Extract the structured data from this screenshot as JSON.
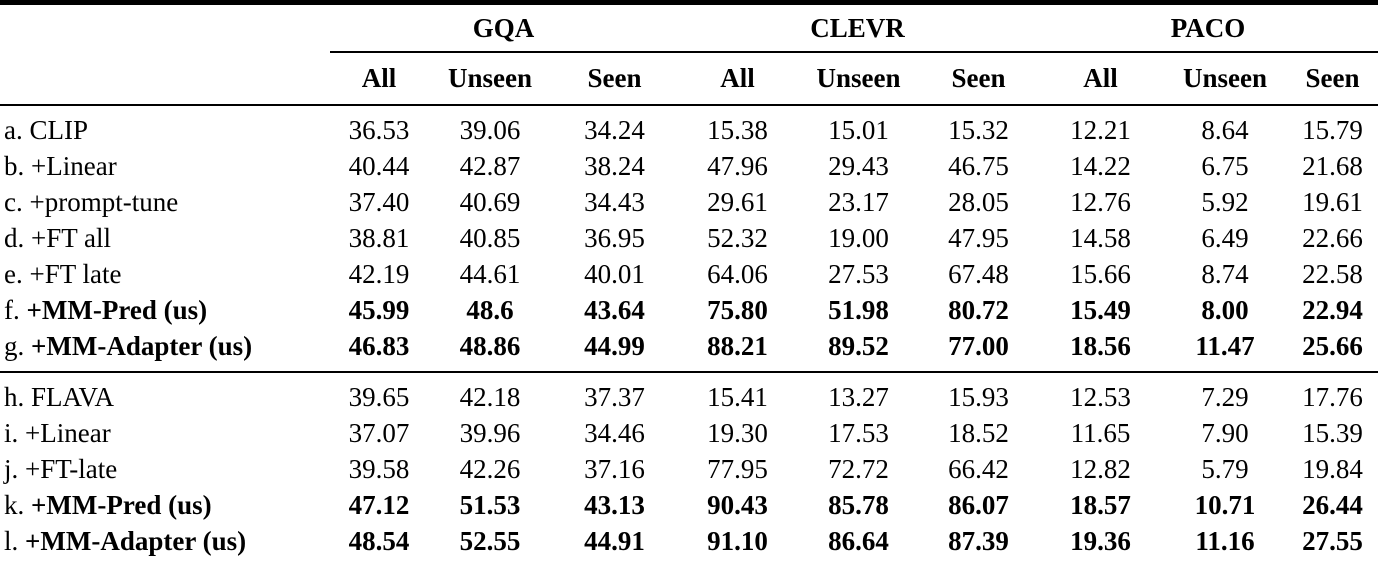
{
  "table": {
    "groups": [
      {
        "label": "GQA"
      },
      {
        "label": "CLEVR"
      },
      {
        "label": "PACO"
      }
    ],
    "subheaders": [
      "All",
      "Unseen",
      "Seen",
      "All",
      "Unseen",
      "Seen",
      "All",
      "Unseen",
      "Seen"
    ],
    "sections": [
      {
        "rows": [
          {
            "prefix": "a.",
            "name": "CLIP",
            "bold": false,
            "values": [
              "36.53",
              "39.06",
              "34.24",
              "15.38",
              "15.01",
              "15.32",
              "12.21",
              "8.64",
              "15.79"
            ]
          },
          {
            "prefix": "b.",
            "name": "+Linear",
            "bold": false,
            "values": [
              "40.44",
              "42.87",
              "38.24",
              "47.96",
              "29.43",
              "46.75",
              "14.22",
              "6.75",
              "21.68"
            ]
          },
          {
            "prefix": "c.",
            "name": "+prompt-tune",
            "bold": false,
            "values": [
              "37.40",
              "40.69",
              "34.43",
              "29.61",
              "23.17",
              "28.05",
              "12.76",
              "5.92",
              "19.61"
            ]
          },
          {
            "prefix": "d.",
            "name": "+FT all",
            "bold": false,
            "values": [
              "38.81",
              "40.85",
              "36.95",
              "52.32",
              "19.00",
              "47.95",
              "14.58",
              "6.49",
              "22.66"
            ]
          },
          {
            "prefix": "e.",
            "name": "+FT late",
            "bold": false,
            "values": [
              "42.19",
              "44.61",
              "40.01",
              "64.06",
              "27.53",
              "67.48",
              "15.66",
              "8.74",
              "22.58"
            ]
          },
          {
            "prefix": "f.",
            "name": "+MM-Pred (us)",
            "bold": true,
            "values": [
              "45.99",
              "48.6",
              "43.64",
              "75.80",
              "51.98",
              "80.72",
              "15.49",
              "8.00",
              "22.94"
            ]
          },
          {
            "prefix": "g.",
            "name": "+MM-Adapter (us)",
            "bold": true,
            "values": [
              "46.83",
              "48.86",
              "44.99",
              "88.21",
              "89.52",
              "77.00",
              "18.56",
              "11.47",
              "25.66"
            ]
          }
        ]
      },
      {
        "rows": [
          {
            "prefix": "h.",
            "name": "FLAVA",
            "bold": false,
            "values": [
              "39.65",
              "42.18",
              "37.37",
              "15.41",
              "13.27",
              "15.93",
              "12.53",
              "7.29",
              "17.76"
            ]
          },
          {
            "prefix": "i.",
            "name": "+Linear",
            "bold": false,
            "values": [
              "37.07",
              "39.96",
              "34.46",
              "19.30",
              "17.53",
              "18.52",
              "11.65",
              "7.90",
              "15.39"
            ]
          },
          {
            "prefix": "j.",
            "name": "+FT-late",
            "bold": false,
            "values": [
              "39.58",
              "42.26",
              "37.16",
              "77.95",
              "72.72",
              "66.42",
              "12.82",
              "5.79",
              "19.84"
            ]
          },
          {
            "prefix": "k.",
            "name": "+MM-Pred (us)",
            "bold": true,
            "values": [
              "47.12",
              "51.53",
              "43.13",
              "90.43",
              "85.78",
              "86.07",
              "18.57",
              "10.71",
              "26.44"
            ]
          },
          {
            "prefix": "l.",
            "name": "+MM-Adapter (us)",
            "bold": true,
            "values": [
              "48.54",
              "52.55",
              "44.91",
              "91.10",
              "86.64",
              "87.39",
              "19.36",
              "11.16",
              "27.55"
            ]
          }
        ]
      }
    ]
  }
}
